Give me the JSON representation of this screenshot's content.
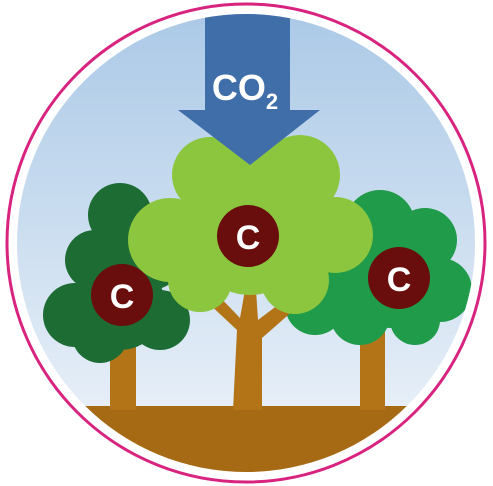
{
  "arrow": {
    "label": "CO",
    "subscript": "2"
  },
  "trees": [
    {
      "label": "C"
    },
    {
      "label": "C"
    },
    {
      "label": "C"
    }
  ]
}
